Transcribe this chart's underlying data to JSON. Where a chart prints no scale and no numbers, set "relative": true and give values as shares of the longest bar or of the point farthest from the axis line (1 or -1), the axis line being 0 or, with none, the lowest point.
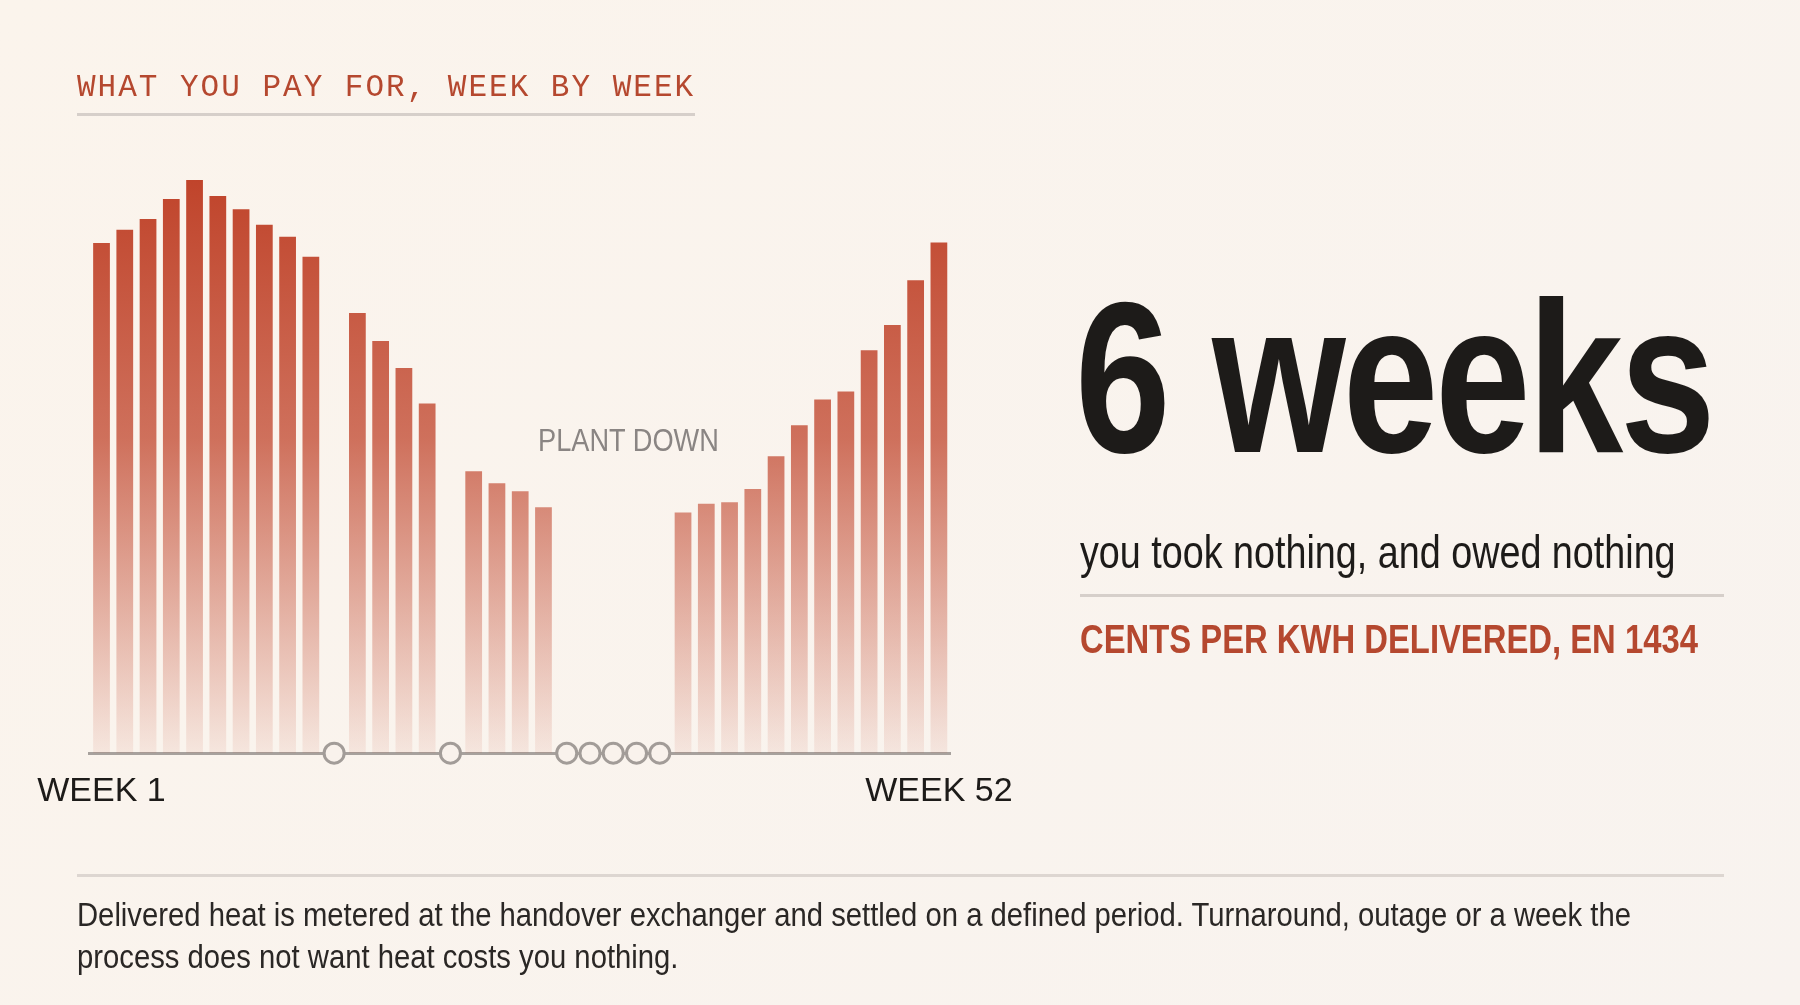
{
  "chart_data": {
    "type": "bar",
    "title": "WHAT YOU PAY FOR, WEEK BY WEEK",
    "relative": true,
    "grid": false,
    "legend": false,
    "categories": [
      "WEEK 1",
      null,
      null,
      null,
      null,
      null,
      null,
      null,
      null,
      null,
      null,
      null,
      null,
      null,
      null,
      null,
      null,
      null,
      null,
      null,
      null,
      null,
      null,
      null,
      null,
      null,
      null,
      null,
      null,
      null,
      null,
      null,
      null,
      null,
      null,
      null,
      "WEEK 52"
    ],
    "series": [
      {
        "color": "#c0442b",
        "values": [
          0.89,
          0.913,
          0.932,
          0.967,
          1,
          0.972,
          0.949,
          0.922,
          0.901,
          0.866,
          null,
          0.768,
          0.719,
          0.672,
          0.61,
          null,
          0.492,
          0.471,
          0.457,
          0.429,
          null,
          null,
          null,
          null,
          null,
          0.42,
          0.435,
          0.438,
          0.461,
          0.518,
          0.572,
          0.617,
          0.631,
          0.703,
          0.747,
          0.825,
          0.891
        ]
      },
      {
        "type": "scatter",
        "color": "#a29c98",
        "marker": "circle",
        "values": [
          null,
          null,
          null,
          null,
          null,
          null,
          null,
          null,
          null,
          null,
          0,
          null,
          null,
          null,
          null,
          0,
          null,
          null,
          null,
          null,
          0,
          0,
          0,
          0,
          0,
          null,
          null,
          null,
          null,
          null,
          null,
          null,
          null,
          null,
          null,
          null,
          null
        ]
      }
    ],
    "annotations": [
      "PLANT DOWN",
      "6 weeks",
      "you took nothing, and owed nothing",
      "CENTS PER KWH DELIVERED, EN 1434",
      "Delivered heat is metered at the handover exchanger and settled on a defined period.  Turnaround, outage or a week the process does not want heat costs you nothing."
    ]
  }
}
